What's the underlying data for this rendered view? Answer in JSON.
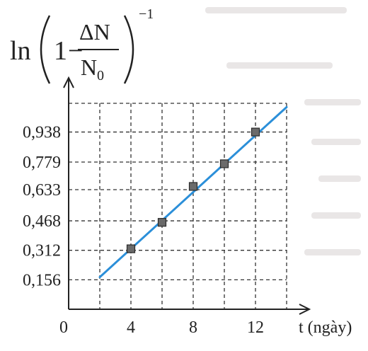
{
  "chart_data": {
    "type": "scatter",
    "ylabel_parts": {
      "fn": "ln",
      "one": "1",
      "minus": "−",
      "numerator": "ΔN",
      "denominator_base": "N",
      "denominator_sub": "0",
      "exponent": "−1"
    },
    "xlabel": "t (ngày)",
    "origin_label": "0",
    "x_ticks": [
      4,
      8,
      12
    ],
    "x_tick_labels": [
      "4",
      "8",
      "12"
    ],
    "y_ticks": [
      0.156,
      0.312,
      0.468,
      0.633,
      0.779,
      0.938
    ],
    "y_tick_labels": [
      "0,156",
      "0,312",
      "0,468",
      "0,633",
      "0,779",
      "0,938"
    ],
    "xlim": [
      0,
      14
    ],
    "ylim": [
      0,
      1.09
    ],
    "grid": true,
    "points": [
      {
        "x": 4,
        "y": 0.32
      },
      {
        "x": 6,
        "y": 0.46
      },
      {
        "x": 8,
        "y": 0.65
      },
      {
        "x": 10,
        "y": 0.77
      },
      {
        "x": 12,
        "y": 0.938
      }
    ],
    "fit_line": {
      "x": [
        2,
        14
      ],
      "y": [
        0.17,
        1.07
      ]
    },
    "colors": {
      "line": "#2b8fd9",
      "marker": "#6b6b6b",
      "marker_edge": "#2a2a2a",
      "grid": "#333333",
      "axis": "#222222"
    }
  }
}
